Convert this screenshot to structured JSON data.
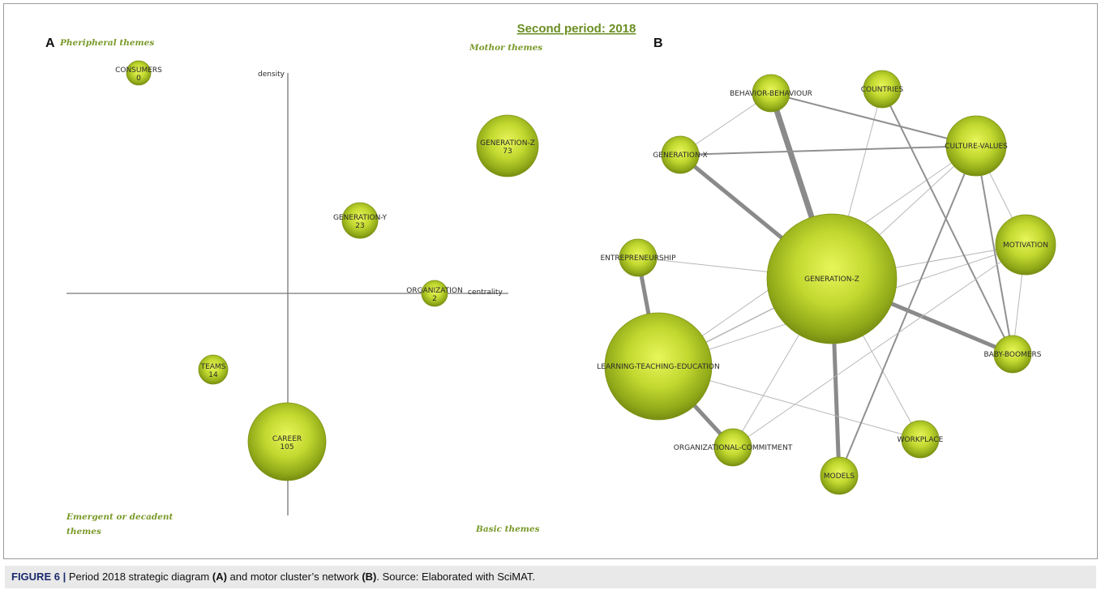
{
  "title": "Second period: 2018",
  "panel_a": {
    "letter": "A",
    "quadrants": {
      "top_left": "Pheripheral themes",
      "top_right": "Mothor themes",
      "bottom_left_line1": "Emergent or decadent",
      "bottom_left_line2": "themes",
      "bottom_right": "Basic themes"
    },
    "axes": {
      "y_label": "density",
      "x_label": "centrality"
    },
    "themes": [
      {
        "name": "CONSUMERS",
        "value": "0"
      },
      {
        "name": "GENERATION-Z",
        "value": "73"
      },
      {
        "name": "GENERATION-Y",
        "value": "23"
      },
      {
        "name": "ORGANIZATION",
        "value": "2"
      },
      {
        "name": "TEAMS",
        "value": "14"
      },
      {
        "name": "CAREER",
        "value": "105"
      }
    ]
  },
  "panel_b": {
    "letter": "B",
    "nodes": [
      {
        "id": "gz",
        "label": "GENERATION-Z"
      },
      {
        "id": "lte",
        "label": "LEARNING-TEACHING-EDUCATION"
      },
      {
        "id": "bb",
        "label": "BEHAVIOR-BEHAVIOUR"
      },
      {
        "id": "co",
        "label": "COUNTRIES"
      },
      {
        "id": "cv",
        "label": "CULTURE-VALUES"
      },
      {
        "id": "gx",
        "label": "GENERATION-X"
      },
      {
        "id": "mo",
        "label": "MOTIVATION"
      },
      {
        "id": "en",
        "label": "ENTREPRENEURSHIP"
      },
      {
        "id": "boom",
        "label": "BABY-BOOMERS"
      },
      {
        "id": "wp",
        "label": "WORKPLACE"
      },
      {
        "id": "oc",
        "label": "ORGANIZATIONAL-COMMITMENT"
      },
      {
        "id": "md",
        "label": "MODELS"
      }
    ],
    "edges": [
      {
        "from": "gz",
        "to": "bb",
        "weight": 7
      },
      {
        "from": "gz",
        "to": "gx",
        "weight": 5
      },
      {
        "from": "gz",
        "to": "boom",
        "weight": 5
      },
      {
        "from": "gz",
        "to": "md",
        "weight": 5
      },
      {
        "from": "gz",
        "to": "co",
        "weight": 1
      },
      {
        "from": "gz",
        "to": "cv",
        "weight": 1
      },
      {
        "from": "gz",
        "to": "mo",
        "weight": 1
      },
      {
        "from": "gz",
        "to": "en",
        "weight": 1
      },
      {
        "from": "gz",
        "to": "lte",
        "weight": 1.5
      },
      {
        "from": "gz",
        "to": "wp",
        "weight": 1
      },
      {
        "from": "gz",
        "to": "oc",
        "weight": 1
      },
      {
        "from": "lte",
        "to": "en",
        "weight": 5
      },
      {
        "from": "lte",
        "to": "oc",
        "weight": 5
      },
      {
        "from": "lte",
        "to": "wp",
        "weight": 1
      },
      {
        "from": "lte",
        "to": "mo",
        "weight": 1
      },
      {
        "from": "lte",
        "to": "cv",
        "weight": 1
      },
      {
        "from": "bb",
        "to": "cv",
        "weight": 2
      },
      {
        "from": "bb",
        "to": "gx",
        "weight": 1
      },
      {
        "from": "gx",
        "to": "cv",
        "weight": 2
      },
      {
        "from": "co",
        "to": "boom",
        "weight": 2
      },
      {
        "from": "cv",
        "to": "boom",
        "weight": 2
      },
      {
        "from": "cv",
        "to": "md",
        "weight": 2
      },
      {
        "from": "cv",
        "to": "mo",
        "weight": 1
      },
      {
        "from": "mo",
        "to": "boom",
        "weight": 1
      },
      {
        "from": "mo",
        "to": "oc",
        "weight": 1
      }
    ]
  },
  "caption": {
    "figure": "FIGURE 6 |",
    "text_1": " Period 2018 strategic diagram ",
    "bold_a": "(A)",
    "text_2": " and motor cluster’s network ",
    "bold_b": "(B)",
    "text_3": ". Source: Elaborated with SciMAT."
  }
}
